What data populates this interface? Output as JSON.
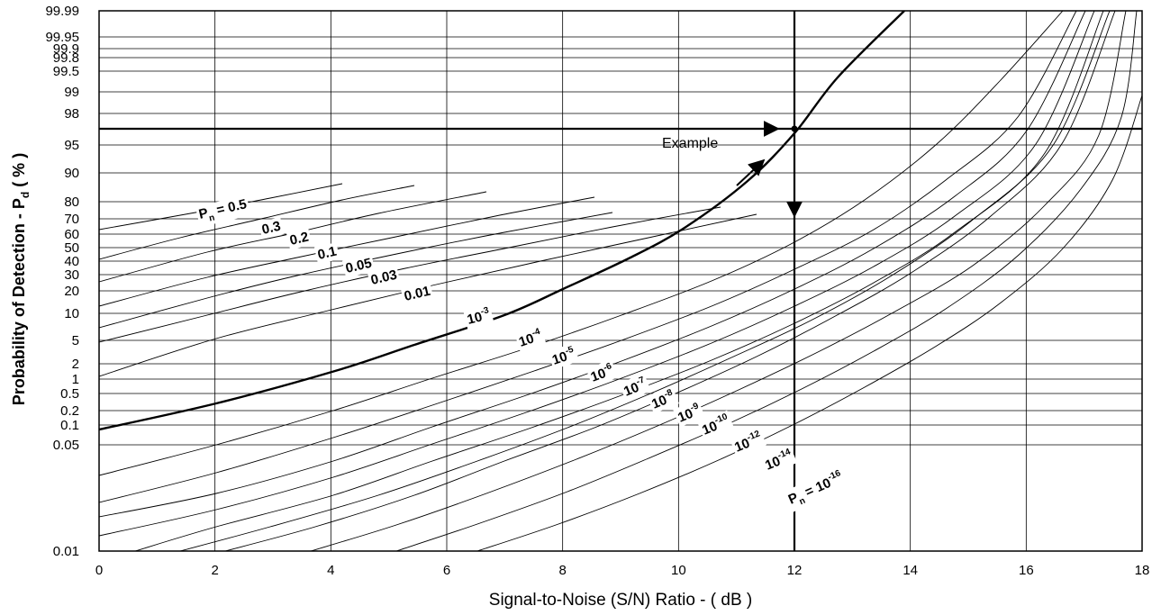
{
  "chart_data": {
    "type": "line",
    "title": "",
    "xlabel": "Signal-to-Noise (S/N) Ratio  -  ( dB )",
    "ylabel": "Probability  of  Detection  -  P",
    "ylabel_subscript": "d",
    "ylabel_suffix": " ( % )",
    "xlim": [
      0,
      18
    ],
    "x_ticks": [
      "0",
      "2",
      "4",
      "6",
      "8",
      "10",
      "12",
      "14",
      "16",
      "18"
    ],
    "y_scale": "probability (normal) scale",
    "y_ticks": [
      "99.99",
      "99.95",
      "99.9",
      "99.8",
      "99.5",
      "99",
      "98",
      "95",
      "90",
      "80",
      "70",
      "60",
      "50",
      "40",
      "30",
      "20",
      "10",
      "5",
      "2",
      "1",
      "0.5",
      "0.2",
      "0.1",
      "0.05",
      "0.01"
    ],
    "grid": true,
    "legend": "none",
    "series": [
      {
        "name": "0.5"
      },
      {
        "name": "0.3"
      },
      {
        "name": "0.2"
      },
      {
        "name": "0.1"
      },
      {
        "name": "0.05"
      },
      {
        "name": "0.03"
      },
      {
        "name": "0.01"
      },
      {
        "name": "10-3"
      },
      {
        "name": "10-4"
      },
      {
        "name": "10-5"
      },
      {
        "name": "10-6"
      },
      {
        "name": "10-7"
      },
      {
        "name": "10-8"
      },
      {
        "name": "10-9"
      },
      {
        "name": "10-10"
      },
      {
        "name": "10-12"
      },
      {
        "name": "10-14"
      },
      {
        "name": "10-16"
      }
    ],
    "curve_labels": [
      {
        "prefix": "P",
        "sub": "n",
        "text": " = 0.5"
      },
      {
        "text": "0.3"
      },
      {
        "text": "0.2"
      },
      {
        "text": "0.1"
      },
      {
        "text": "0.05"
      },
      {
        "text": "0.03"
      },
      {
        "text": "0.01"
      },
      {
        "base": "10",
        "exp": "-3"
      },
      {
        "base": "10",
        "exp": "-4"
      },
      {
        "base": "10",
        "exp": "-5"
      },
      {
        "base": "10",
        "exp": "-6"
      },
      {
        "base": "10",
        "exp": "-7"
      },
      {
        "base": "10",
        "exp": "-8"
      },
      {
        "base": "10",
        "exp": "-9"
      },
      {
        "base": "10",
        "exp": "-10"
      },
      {
        "base": "10",
        "exp": "-12"
      },
      {
        "base": "10",
        "exp": "-14"
      },
      {
        "prefix": "P",
        "sub": "n",
        "text": " = 10",
        "exp": "-16"
      }
    ],
    "annotations": [
      {
        "text": "Example",
        "x": 12,
        "y": 98
      }
    ]
  }
}
